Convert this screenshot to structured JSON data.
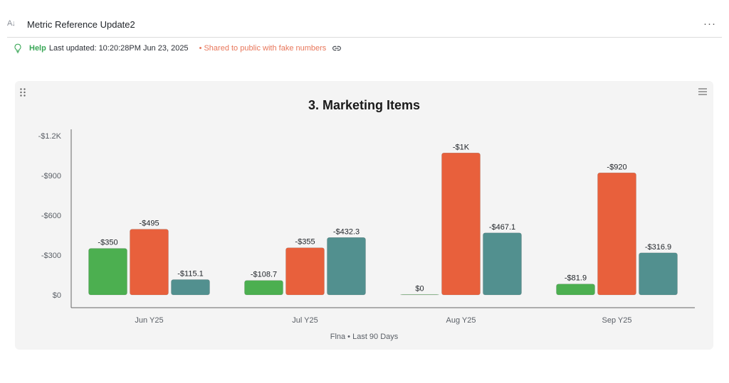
{
  "header": {
    "title": "Metric Reference Update2",
    "sort_icon": "sort-az-icon",
    "more_icon": "more-horizontal-icon",
    "more_label": "···"
  },
  "status_bar": {
    "help_label": "Help",
    "last_updated": "Last updated: 10:20:28PM Jun 23, 2025",
    "shared_notice": "• Shared to public with fake numbers"
  },
  "colors": {
    "help": "#3aa757",
    "shared_notice": "#e8765a",
    "series": [
      "#4caf50",
      "#e8603c",
      "#52908f"
    ]
  },
  "chart_data": {
    "type": "bar",
    "title": "3. Marketing Items",
    "caption": "Flna • Last 90 Days",
    "categories": [
      "Jun Y25",
      "Jul Y25",
      "Aug Y25",
      "Sep Y25"
    ],
    "series": [
      {
        "values": [
          350,
          108.7,
          0,
          81.9
        ],
        "labels": [
          "-$350",
          "-$108.7",
          "$0",
          "-$81.9"
        ],
        "color": "#4caf50"
      },
      {
        "values": [
          495,
          355,
          1070,
          920
        ],
        "labels": [
          "-$495",
          "-$355",
          "-$1K",
          "-$920"
        ],
        "color": "#e8603c"
      },
      {
        "values": [
          115.1,
          432.3,
          467.1,
          316.9
        ],
        "labels": [
          "-$115.1",
          "-$432.3",
          "-$467.1",
          "-$316.9"
        ],
        "color": "#52908f"
      }
    ],
    "y_ticks": [
      0,
      300,
      600,
      900,
      1200
    ],
    "y_tick_labels": [
      "$0",
      "-$300",
      "-$600",
      "-$900",
      "-$1.2K"
    ],
    "ylim": [
      0,
      1200
    ],
    "grid": false,
    "legend": "none"
  }
}
